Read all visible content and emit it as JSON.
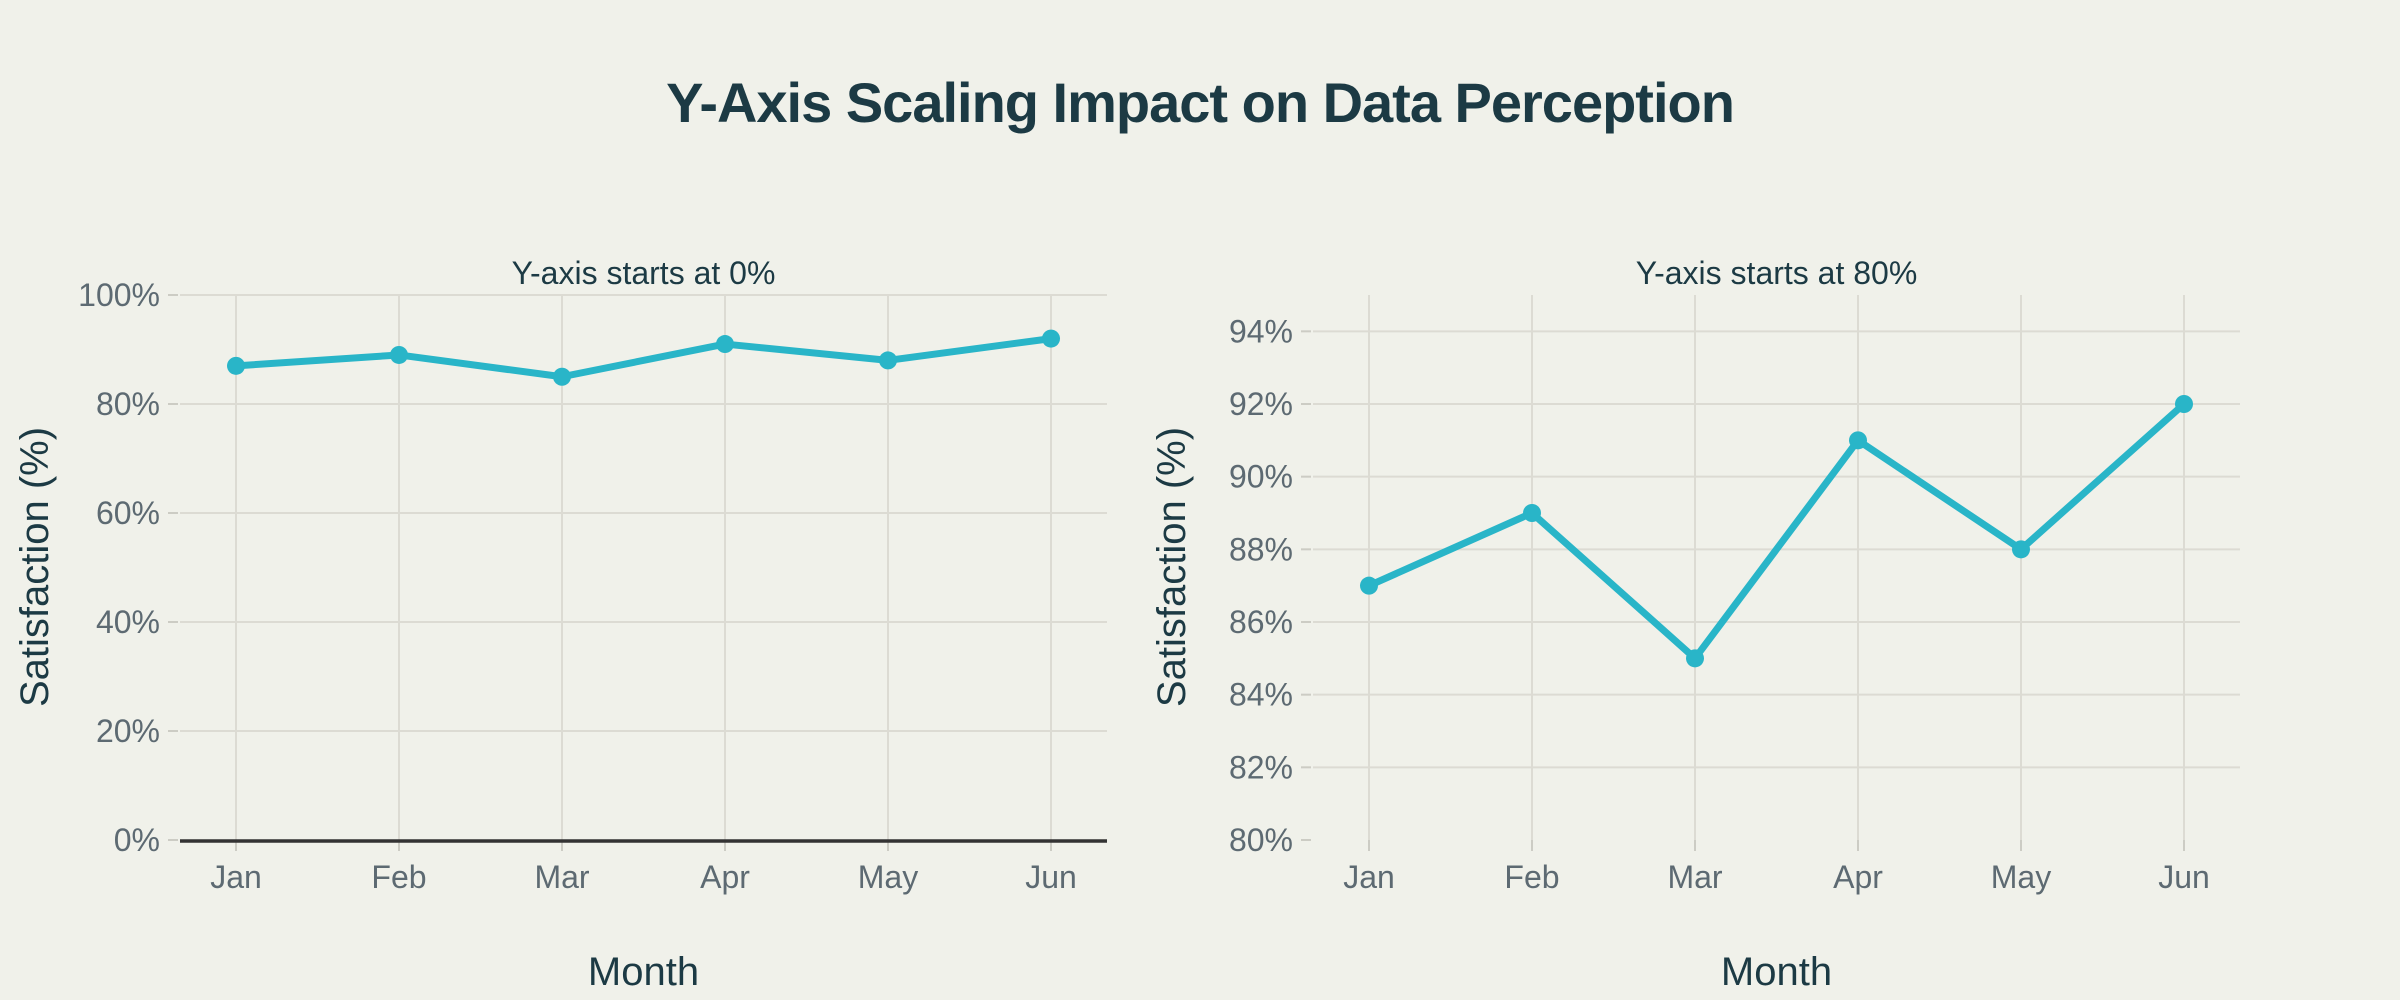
{
  "page": {
    "title": "Y-Axis Scaling Impact on Data Perception",
    "background": "#f0f1ea"
  },
  "colors": {
    "title_text": "#1c3a44",
    "axis_label_text": "#1c3a44",
    "tick_text": "#5d6a72",
    "grid": "#dcdbd3",
    "tick_mark": "#ccccc4",
    "axis_spine": "#333333",
    "series_line": "#29b5c8"
  },
  "chart_data": [
    {
      "type": "line",
      "title": "Y-axis starts at 0%",
      "xlabel": "Month",
      "ylabel": "Satisfaction (%)",
      "categories": [
        "Jan",
        "Feb",
        "Mar",
        "Apr",
        "May",
        "Jun"
      ],
      "series": [
        {
          "name": "Satisfaction",
          "values": [
            87,
            89,
            85,
            91,
            88,
            92
          ]
        }
      ],
      "ylim": [
        0,
        100
      ],
      "yticks": [
        0,
        20,
        40,
        60,
        80,
        100
      ],
      "ytick_suffix": "%",
      "grid": true,
      "legend": "none",
      "bottom_spine": true
    },
    {
      "type": "line",
      "title": "Y-axis starts at 80%",
      "xlabel": "Month",
      "ylabel": "Satisfaction (%)",
      "categories": [
        "Jan",
        "Feb",
        "Mar",
        "Apr",
        "May",
        "Jun"
      ],
      "series": [
        {
          "name": "Satisfaction",
          "values": [
            87,
            89,
            85,
            91,
            88,
            92
          ]
        }
      ],
      "ylim": [
        80,
        95
      ],
      "yticks": [
        80,
        82,
        84,
        86,
        88,
        90,
        92,
        94
      ],
      "ytick_suffix": "%",
      "grid": true,
      "legend": "none",
      "bottom_spine": false
    }
  ]
}
